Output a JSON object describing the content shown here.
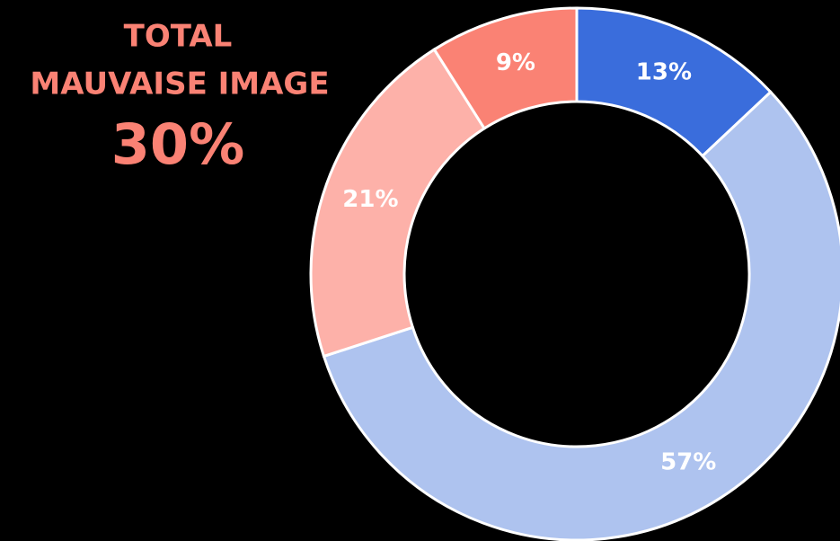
{
  "chart_data": {
    "type": "donut",
    "annotations": [
      "TOTAL",
      "MAUVAISE IMAGE",
      "30%"
    ],
    "categories": [
      null,
      null,
      null,
      null
    ],
    "values": [
      13,
      57,
      21,
      9
    ],
    "value_labels": [
      "13%",
      "57%",
      "21%",
      "9%"
    ],
    "colors": [
      "#3a6ddc",
      "#aec3ef",
      "#fdb1a9",
      "#fa8274"
    ]
  }
}
